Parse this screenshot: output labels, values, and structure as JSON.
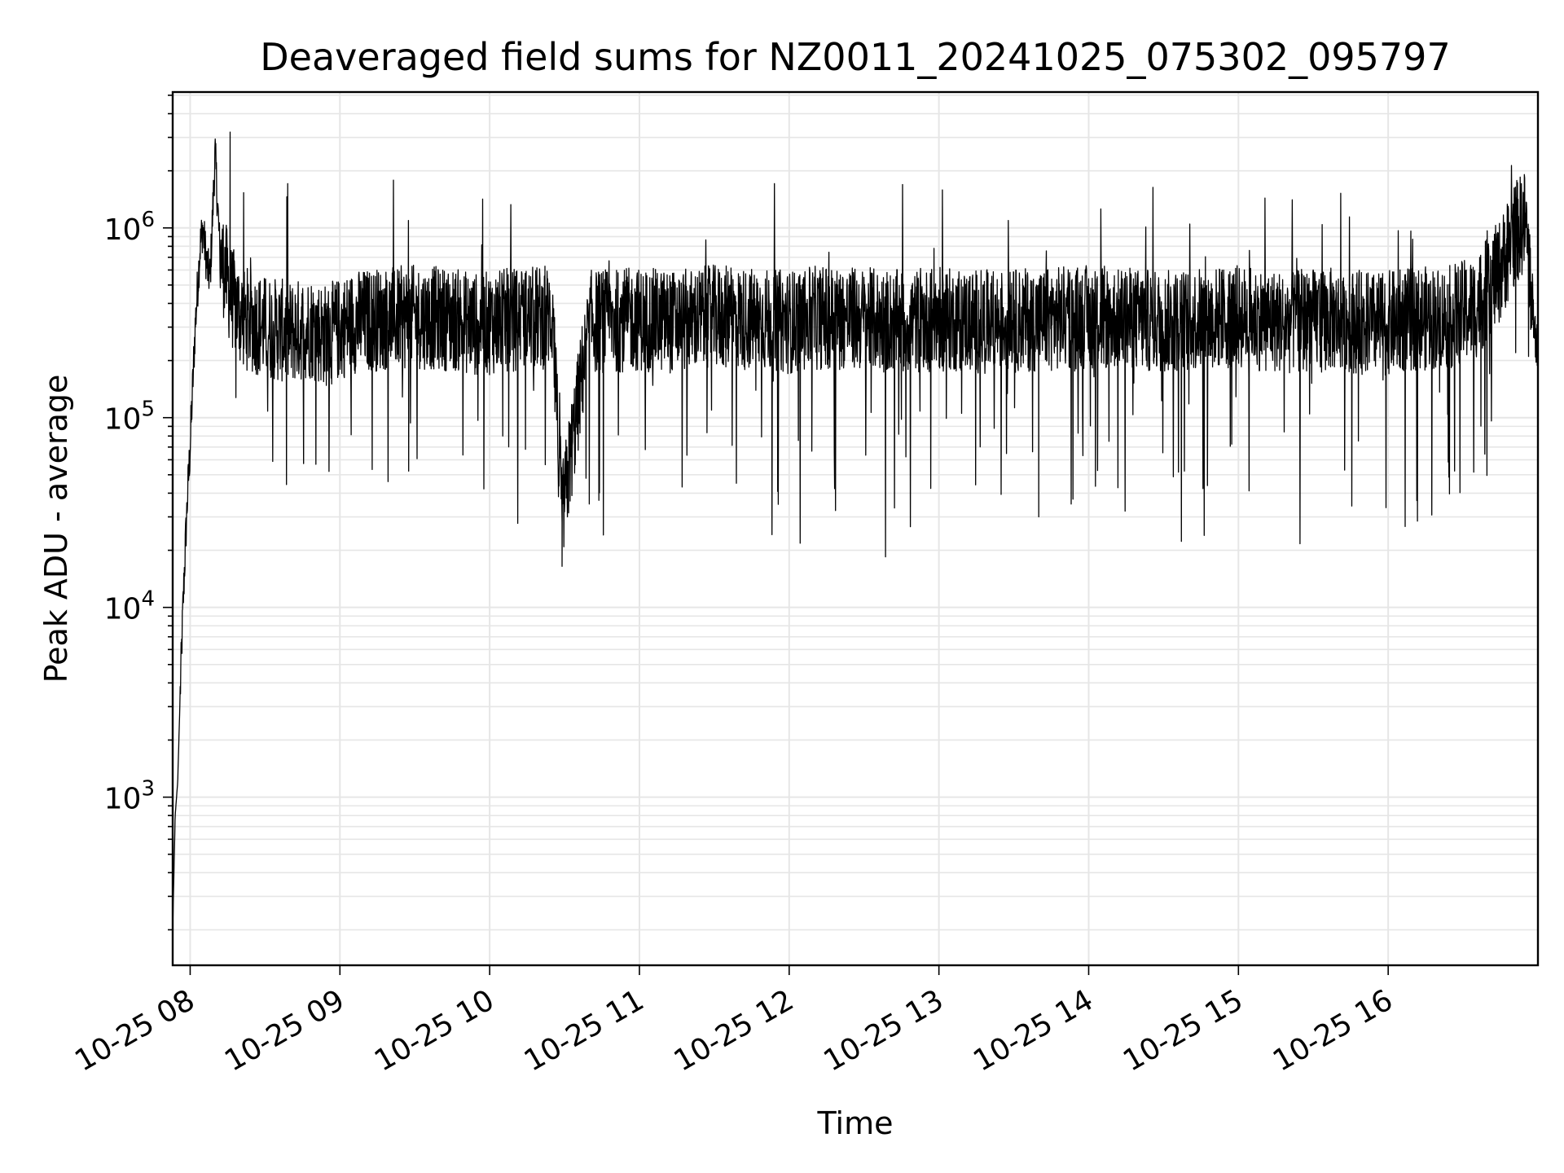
{
  "chart_data": {
    "type": "line",
    "title": "Deaveraged field sums for NZ0011_20241025_075302_095797",
    "xlabel": "Time",
    "ylabel": "Peak ADU - average",
    "yscale": "log",
    "ylim": [
      130,
      5200000
    ],
    "xlim": [
      "2024-10-25 07:53",
      "2024-10-25 17:00"
    ],
    "grid": true,
    "line_color": "#000000",
    "grid_color": "#e6e6e6",
    "x_ticks": [
      {
        "value": "2024-10-25 08:00",
        "label": "10-25 08"
      },
      {
        "value": "2024-10-25 09:00",
        "label": "10-25 09"
      },
      {
        "value": "2024-10-25 10:00",
        "label": "10-25 10"
      },
      {
        "value": "2024-10-25 11:00",
        "label": "10-25 11"
      },
      {
        "value": "2024-10-25 12:00",
        "label": "10-25 12"
      },
      {
        "value": "2024-10-25 13:00",
        "label": "10-25 13"
      },
      {
        "value": "2024-10-25 14:00",
        "label": "10-25 14"
      },
      {
        "value": "2024-10-25 15:00",
        "label": "10-25 15"
      },
      {
        "value": "2024-10-25 16:00",
        "label": "10-25 16"
      }
    ],
    "y_ticks": [
      {
        "value": 1000,
        "base": "10",
        "exp": "3"
      },
      {
        "value": 10000,
        "base": "10",
        "exp": "4"
      },
      {
        "value": 100000,
        "base": "10",
        "exp": "5"
      },
      {
        "value": 1000000,
        "base": "10",
        "exp": "6"
      }
    ],
    "series": [
      {
        "x": [
          "2024-10-25 07:53",
          "2024-10-25 07:54",
          "2024-10-25 07:55",
          "2024-10-25 07:56",
          "2024-10-25 07:57",
          "2024-10-25 07:58",
          "2024-10-25 07:59",
          "2024-10-25 08:00",
          "2024-10-25 08:02",
          "2024-10-25 08:04",
          "2024-10-25 08:05",
          "2024-10-25 08:07",
          "2024-10-25 08:08",
          "2024-10-25 08:10",
          "2024-10-25 08:12",
          "2024-10-25 08:14",
          "2024-10-25 08:16",
          "2024-10-25 08:18",
          "2024-10-25 08:20",
          "2024-10-25 08:25",
          "2024-10-25 08:30",
          "2024-10-25 08:40",
          "2024-10-25 08:48",
          "2024-10-25 08:55",
          "2024-10-25 09:05",
          "2024-10-25 09:15",
          "2024-10-25 09:30",
          "2024-10-25 09:45",
          "2024-10-25 09:55",
          "2024-10-25 10:10",
          "2024-10-25 10:25",
          "2024-10-25 10:29",
          "2024-10-25 10:40",
          "2024-10-25 11:00",
          "2024-10-25 11:15",
          "2024-10-25 11:30",
          "2024-10-25 11:45",
          "2024-10-25 12:00",
          "2024-10-25 12:15",
          "2024-10-25 12:30",
          "2024-10-25 12:45",
          "2024-10-25 13:00",
          "2024-10-25 13:20",
          "2024-10-25 13:40",
          "2024-10-25 14:00",
          "2024-10-25 14:15",
          "2024-10-25 14:30",
          "2024-10-25 14:45",
          "2024-10-25 15:00",
          "2024-10-25 15:20",
          "2024-10-25 15:40",
          "2024-10-25 15:55",
          "2024-10-25 16:10",
          "2024-10-25 16:25",
          "2024-10-25 16:35",
          "2024-10-25 16:45",
          "2024-10-25 16:50",
          "2024-10-25 16:55",
          "2024-10-25 16:59"
        ],
        "y": [
          200,
          800,
          1200,
          3500,
          9000,
          20000,
          40000,
          70000,
          300000,
          800000,
          1000000,
          600000,
          550000,
          2500000,
          700000,
          600000,
          450000,
          400000,
          350000,
          320000,
          300000,
          280000,
          300000,
          270000,
          320000,
          330000,
          340000,
          330000,
          310000,
          330000,
          340000,
          30000,
          320000,
          330000,
          320000,
          340000,
          330000,
          320000,
          340000,
          330000,
          320000,
          330000,
          320000,
          330000,
          340000,
          330000,
          320000,
          330000,
          340000,
          320000,
          330000,
          310000,
          330000,
          340000,
          380000,
          600000,
          900000,
          1100000,
          250000
        ]
      }
    ]
  }
}
